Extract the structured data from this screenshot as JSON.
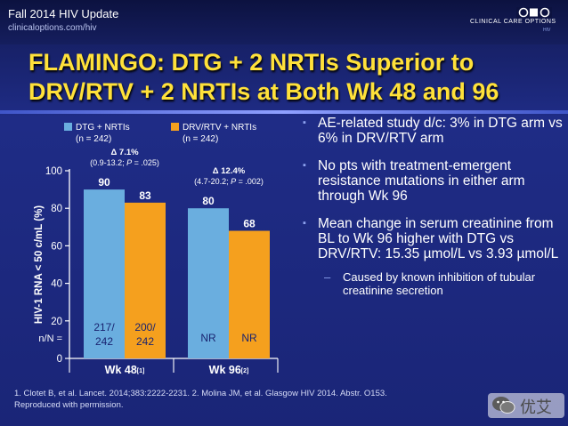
{
  "header": {
    "title": "Fall 2014 HIV Update",
    "url": "clinicaloptions.com/hiv",
    "logo": {
      "text": "CLINICAL CARE OPTIONS",
      "sub": "HIV",
      "mark": "CCO"
    }
  },
  "slide_title": {
    "line1": "FLAMINGO: DTG + 2 NRTIs Superior to",
    "line2": "DRV/RTV + 2 NRTIs at Both Wk 48 and 96"
  },
  "legend": [
    {
      "label": "DTG + NRTIs",
      "n": "(n = 242)",
      "color": "#6aaedf"
    },
    {
      "label": "DRV/RTV + NRTIs",
      "n": "(n = 242)",
      "color": "#f5a01e"
    }
  ],
  "chart_data": {
    "type": "bar",
    "categories": [
      "Wk 48[1]",
      "Wk 96[2]"
    ],
    "category_labels": [
      {
        "main": "Wk 48",
        "ref": "[1]"
      },
      {
        "main": "Wk 96",
        "ref": "[2]"
      }
    ],
    "series": [
      {
        "name": "DTG + NRTIs",
        "values": [
          90,
          80
        ],
        "n_labels": [
          "217/\n242",
          "NR"
        ],
        "color": "#6aaedf"
      },
      {
        "name": "DRV/RTV + NRTIs",
        "values": [
          83,
          68
        ],
        "n_labels": [
          "200/\n242",
          "NR"
        ],
        "color": "#f5a01e"
      }
    ],
    "ylabel": "HIV-1 RNA < 50 c/mL (%)",
    "ylim": [
      0,
      100
    ],
    "yticks": [
      0,
      20,
      40,
      60,
      80,
      100
    ],
    "n_row_label": "n/N =",
    "annotations": [
      {
        "delta": "Δ 7.1%",
        "ci_pre": "(0.9-13.2; ",
        "p_label": "P",
        "p_value": " = .025)"
      },
      {
        "delta": "Δ 12.4%",
        "ci_pre": "(4.7-20.2; ",
        "p_label": "P",
        "p_value": " = .002)"
      }
    ]
  },
  "bullets": [
    {
      "text": "AE-related study d/c: 3% in DTG arm vs 6% in DRV/RTV arm"
    },
    {
      "text": "No pts with treatment-emergent resistance mutations in either arm through Wk 96"
    },
    {
      "text": "Mean change in serum creatinine from BL to Wk 96 higher with DTG vs DRV/RTV: 15.35 µmol/L vs 3.93 µmol/L"
    }
  ],
  "sub_bullets": [
    {
      "text": "Caused by known inhibition of tubular creatinine secretion"
    }
  ],
  "bullet_marker": "▪",
  "sub_marker": "–",
  "footnote": {
    "line1": "1. Clotet B, et al. Lancet. 2014;383:2222-2231. 2. Molina JM, et al. Glasgow HIV 2014. Abstr. O153.",
    "line2": "Reproduced with permission."
  },
  "watermark": {
    "text": "优艾",
    "icon": "wechat-icon"
  }
}
